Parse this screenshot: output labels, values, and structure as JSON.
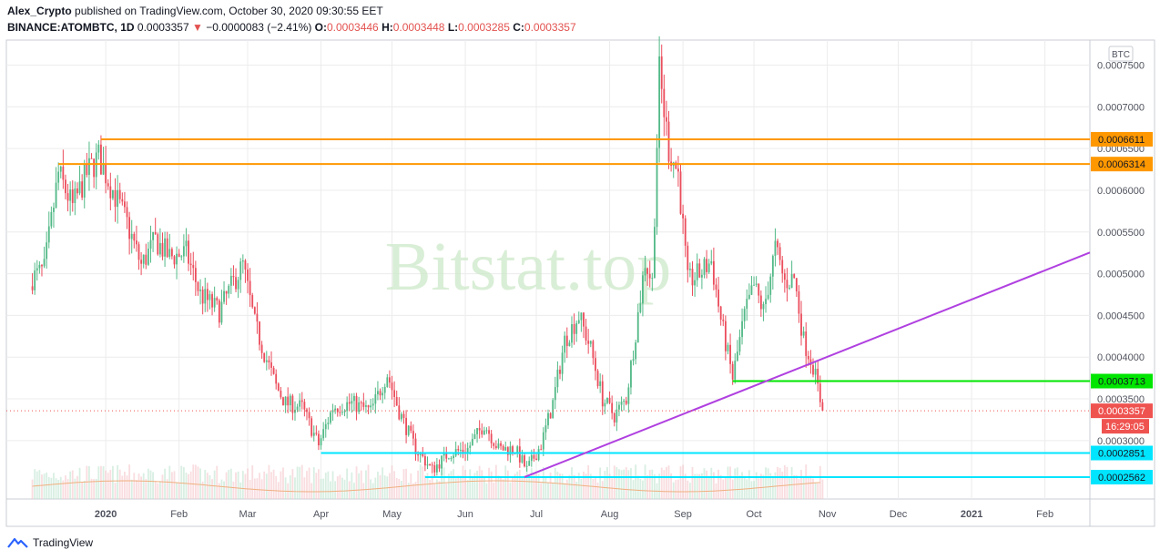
{
  "header": {
    "line1_author": "Alex_Crypto",
    "line1_rest": " published on TradingView.com, October 30, 2020 09:30:55 EET",
    "symbol": "BINANCE:ATOMBTC, 1D",
    "last": "0.0003357",
    "change": "−0.0000083 (−2.41%)",
    "o_label": "O:",
    "o_value": "0.0003446",
    "h_label": "H:",
    "h_value": "0.0003448",
    "l_label": "L:",
    "l_value": "0.0003285",
    "c_label": "C:",
    "c_value": "0.0003357",
    "down_arrow_icon": "triangle-down-icon"
  },
  "watermark": "Bitstat.top",
  "footer": {
    "brand": "TradingView",
    "logo_icon": "tradingview-logo-icon"
  },
  "chart_data": {
    "type": "candlestick",
    "currency": "BTC",
    "countdown": "16:29:05",
    "ylim": [
      0.00023,
      0.00078
    ],
    "y_ticks": [
      "0.0007500",
      "0.0007000",
      "0.0006500",
      "0.0006000",
      "0.0005500",
      "0.0005000",
      "0.0004500",
      "0.0004000",
      "0.0003500",
      "0.0003000"
    ],
    "x_ticks": [
      {
        "label": "2020",
        "date": "2020-01-01",
        "bold": true
      },
      {
        "label": "Feb",
        "date": "2020-02-01"
      },
      {
        "label": "Mar",
        "date": "2020-03-01"
      },
      {
        "label": "Apr",
        "date": "2020-04-01"
      },
      {
        "label": "May",
        "date": "2020-05-01"
      },
      {
        "label": "Jun",
        "date": "2020-06-01"
      },
      {
        "label": "Jul",
        "date": "2020-07-01"
      },
      {
        "label": "Aug",
        "date": "2020-08-01"
      },
      {
        "label": "Sep",
        "date": "2020-09-01"
      },
      {
        "label": "Oct",
        "date": "2020-10-01"
      },
      {
        "label": "Nov",
        "date": "2020-11-01"
      },
      {
        "label": "Dec",
        "date": "2020-12-01"
      },
      {
        "label": "2021",
        "date": "2021-01-01",
        "bold": true
      },
      {
        "label": "Feb",
        "date": "2021-02-01"
      }
    ],
    "last_price": {
      "value": 0.0003357,
      "label": "0.0003357",
      "color": "#ef5350"
    },
    "horizontal_levels": [
      {
        "value": 0.0006611,
        "label": "0.0006611",
        "color": "#ff9800",
        "from": "2019-12-30"
      },
      {
        "value": 0.0006314,
        "label": "0.0006314",
        "color": "#ff9800",
        "from": "2019-12-12"
      },
      {
        "value": 0.0003713,
        "label": "0.0003713",
        "color": "#00e600",
        "from": "2020-09-22"
      },
      {
        "value": 0.0002851,
        "label": "0.0002851",
        "color": "#00e5ff",
        "from": "2020-04-01"
      },
      {
        "value": 0.0002562,
        "label": "0.0002562",
        "color": "#00e5ff",
        "from": "2020-05-15"
      }
    ],
    "trendline": {
      "color": "#b040e0",
      "start": {
        "date": "2020-06-26",
        "value": 0.0002562
      },
      "end": {
        "date": "2020-11-14",
        "value": 0.000415
      },
      "extend_right": true
    },
    "close_path": [
      {
        "date": "2019-12-01",
        "close": 0.000495
      },
      {
        "date": "2019-12-06",
        "close": 0.000505
      },
      {
        "date": "2019-12-12",
        "close": 0.00062
      },
      {
        "date": "2019-12-18",
        "close": 0.00058
      },
      {
        "date": "2019-12-24",
        "close": 0.00062
      },
      {
        "date": "2019-12-29",
        "close": 0.00064
      },
      {
        "date": "2020-01-04",
        "close": 0.0006
      },
      {
        "date": "2020-01-10",
        "close": 0.00056
      },
      {
        "date": "2020-01-16",
        "close": 0.00051
      },
      {
        "date": "2020-01-22",
        "close": 0.00054
      },
      {
        "date": "2020-01-28",
        "close": 0.00052
      },
      {
        "date": "2020-02-04",
        "close": 0.000525
      },
      {
        "date": "2020-02-10",
        "close": 0.000475
      },
      {
        "date": "2020-02-18",
        "close": 0.000455
      },
      {
        "date": "2020-02-24",
        "close": 0.00049
      },
      {
        "date": "2020-02-28",
        "close": 0.00051
      },
      {
        "date": "2020-03-04",
        "close": 0.00044
      },
      {
        "date": "2020-03-08",
        "close": 0.000405
      },
      {
        "date": "2020-03-13",
        "close": 0.000365
      },
      {
        "date": "2020-03-17",
        "close": 0.000345
      },
      {
        "date": "2020-03-24",
        "close": 0.00034
      },
      {
        "date": "2020-03-31",
        "close": 0.000295
      },
      {
        "date": "2020-04-06",
        "close": 0.00034
      },
      {
        "date": "2020-04-14",
        "close": 0.000345
      },
      {
        "date": "2020-04-22",
        "close": 0.000335
      },
      {
        "date": "2020-04-29",
        "close": 0.00038
      },
      {
        "date": "2020-05-04",
        "close": 0.000335
      },
      {
        "date": "2020-05-11",
        "close": 0.00029
      },
      {
        "date": "2020-05-18",
        "close": 0.000265
      },
      {
        "date": "2020-05-25",
        "close": 0.000285
      },
      {
        "date": "2020-06-02",
        "close": 0.00029
      },
      {
        "date": "2020-06-09",
        "close": 0.00032
      },
      {
        "date": "2020-06-15",
        "close": 0.00029
      },
      {
        "date": "2020-06-22",
        "close": 0.00029
      },
      {
        "date": "2020-06-27",
        "close": 0.000265
      },
      {
        "date": "2020-07-03",
        "close": 0.000295
      },
      {
        "date": "2020-07-08",
        "close": 0.000345
      },
      {
        "date": "2020-07-13",
        "close": 0.00042
      },
      {
        "date": "2020-07-19",
        "close": 0.00045
      },
      {
        "date": "2020-07-24",
        "close": 0.00041
      },
      {
        "date": "2020-07-29",
        "close": 0.00035
      },
      {
        "date": "2020-08-03",
        "close": 0.00033
      },
      {
        "date": "2020-08-08",
        "close": 0.00035
      },
      {
        "date": "2020-08-12",
        "close": 0.00043
      },
      {
        "date": "2020-08-16",
        "close": 0.000515
      },
      {
        "date": "2020-08-19",
        "close": 0.00049
      },
      {
        "date": "2020-08-22",
        "close": 0.00074
      },
      {
        "date": "2020-08-26",
        "close": 0.00065
      },
      {
        "date": "2020-08-30",
        "close": 0.00062
      },
      {
        "date": "2020-09-03",
        "close": 0.00049
      },
      {
        "date": "2020-09-08",
        "close": 0.0005
      },
      {
        "date": "2020-09-13",
        "close": 0.000515
      },
      {
        "date": "2020-09-17",
        "close": 0.000445
      },
      {
        "date": "2020-09-22",
        "close": 0.000375
      },
      {
        "date": "2020-09-27",
        "close": 0.00045
      },
      {
        "date": "2020-10-01",
        "close": 0.000485
      },
      {
        "date": "2020-10-05",
        "close": 0.000455
      },
      {
        "date": "2020-10-10",
        "close": 0.00053
      },
      {
        "date": "2020-10-14",
        "close": 0.00049
      },
      {
        "date": "2020-10-18",
        "close": 0.000495
      },
      {
        "date": "2020-10-22",
        "close": 0.00042
      },
      {
        "date": "2020-10-26",
        "close": 0.00039
      },
      {
        "date": "2020-10-30",
        "close": 0.0003357
      }
    ]
  }
}
